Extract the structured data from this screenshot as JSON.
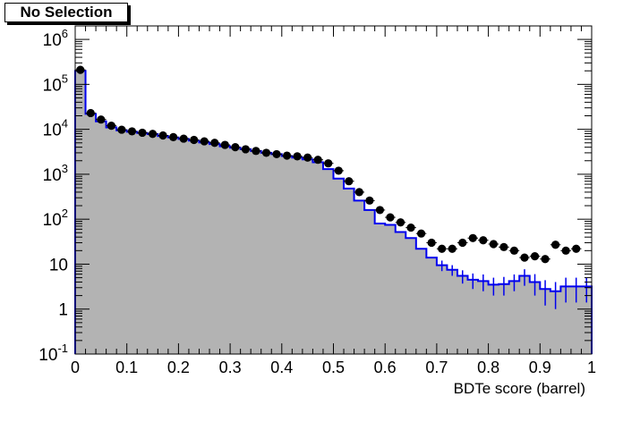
{
  "chart_data": {
    "type": "histogram",
    "title": "No Selection",
    "xlabel": "BDTe score (barrel)",
    "ylabel": "",
    "xlim": [
      0,
      1
    ],
    "ylim": [
      0.1,
      2000000
    ],
    "yscale": "log",
    "grid": false,
    "bin_width": 0.02,
    "x_ticks": [
      {
        "v": 0,
        "label": "0"
      },
      {
        "v": 0.1,
        "label": "0.1"
      },
      {
        "v": 0.2,
        "label": "0.2"
      },
      {
        "v": 0.3,
        "label": "0.3"
      },
      {
        "v": 0.4,
        "label": "0.4"
      },
      {
        "v": 0.5,
        "label": "0.5"
      },
      {
        "v": 0.6,
        "label": "0.6"
      },
      {
        "v": 0.7,
        "label": "0.7"
      },
      {
        "v": 0.8,
        "label": "0.8"
      },
      {
        "v": 0.9,
        "label": "0.9"
      },
      {
        "v": 1,
        "label": "1"
      }
    ],
    "y_ticks": [
      {
        "v": 0.1,
        "base": "10",
        "exp": "-1"
      },
      {
        "v": 1,
        "base": "1",
        "exp": ""
      },
      {
        "v": 10,
        "base": "10",
        "exp": ""
      },
      {
        "v": 100,
        "base": "10",
        "exp": "2"
      },
      {
        "v": 1000,
        "base": "10",
        "exp": "3"
      },
      {
        "v": 10000,
        "base": "10",
        "exp": "4"
      },
      {
        "v": 100000,
        "base": "10",
        "exp": "5"
      },
      {
        "v": 1000000,
        "base": "10",
        "exp": "6"
      }
    ],
    "series": [
      {
        "style": "filled-histogram",
        "fill_color": "#b3b3b3",
        "line_color": "#0000ee",
        "values": [
          200000,
          22000,
          15000,
          11000,
          9500,
          8800,
          8300,
          7800,
          7100,
          6600,
          6100,
          5600,
          5100,
          4700,
          4200,
          3900,
          3600,
          3300,
          3000,
          2800,
          2550,
          2350,
          2150,
          1850,
          1300,
          800,
          480,
          260,
          160,
          80,
          75,
          52,
          38,
          22,
          14,
          9.5,
          7.5,
          5.5,
          4.5,
          4.2,
          3.5,
          3.6,
          4.2,
          5.5,
          4.0,
          2.8,
          2.5,
          3.2,
          3.2,
          3.2
        ],
        "errors": [
          0,
          0,
          0,
          0,
          0,
          0,
          0,
          0,
          0,
          0,
          0,
          0,
          0,
          0,
          0,
          0,
          0,
          0,
          0,
          0,
          0,
          0,
          0,
          0,
          0,
          0,
          0,
          0,
          0,
          0,
          0,
          0,
          0,
          0,
          0,
          2.5,
          2.0,
          1.8,
          1.7,
          1.7,
          1.5,
          1.6,
          1.7,
          2.2,
          2.0,
          1.6,
          1.5,
          1.8,
          1.8,
          1.8
        ]
      },
      {
        "style": "points",
        "marker_color": "#000000",
        "values": [
          210000,
          23000,
          16500,
          12000,
          9800,
          9000,
          8400,
          7900,
          7300,
          6700,
          6200,
          5800,
          5400,
          5000,
          4500,
          4000,
          3600,
          3300,
          3000,
          2800,
          2600,
          2500,
          2350,
          2100,
          1750,
          1200,
          700,
          400,
          260,
          160,
          110,
          85,
          65,
          48,
          30,
          22,
          22,
          30,
          38,
          34,
          28,
          24,
          20,
          14,
          15,
          13,
          27,
          20,
          22,
          0
        ]
      }
    ]
  }
}
